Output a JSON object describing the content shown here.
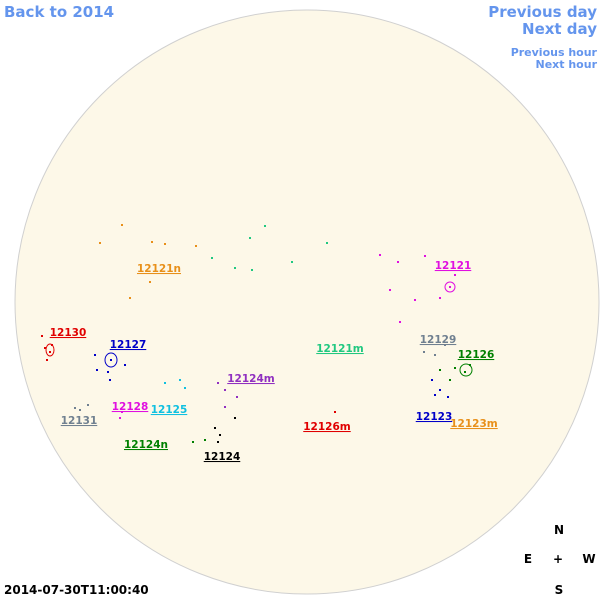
{
  "nav": {
    "back": "Back to 2014",
    "previous_day": "Previous day",
    "next_day": "Next day",
    "previous_hour": "Previous hour",
    "next_hour": "Next hour"
  },
  "timestamp": "2014-07-30T11:00:40",
  "compass": {
    "north": "N",
    "east": "E",
    "center": "+",
    "west": "W",
    "south": "S"
  },
  "regions": [
    {
      "label": "12121n",
      "color": "#e8901a"
    },
    {
      "label": "12121",
      "color": "#e010e0"
    },
    {
      "label": "12130",
      "color": "#e00000"
    },
    {
      "label": "12127",
      "color": "#0000c8"
    },
    {
      "label": "12121m",
      "color": "#20c880"
    },
    {
      "label": "12129",
      "color": "#708090"
    },
    {
      "label": "12126",
      "color": "#008000"
    },
    {
      "label": "12124m",
      "color": "#9030c0"
    },
    {
      "label": "12128",
      "color": "#e010e0"
    },
    {
      "label": "12125",
      "color": "#10c0e0"
    },
    {
      "label": "12131",
      "color": "#708090"
    },
    {
      "label": "12123",
      "color": "#0000c8"
    },
    {
      "label": "12123m",
      "color": "#e8901a"
    },
    {
      "label": "12126m",
      "color": "#e00000"
    },
    {
      "label": "12124n",
      "color": "#008000"
    },
    {
      "label": "12124",
      "color": "#000000"
    }
  ]
}
